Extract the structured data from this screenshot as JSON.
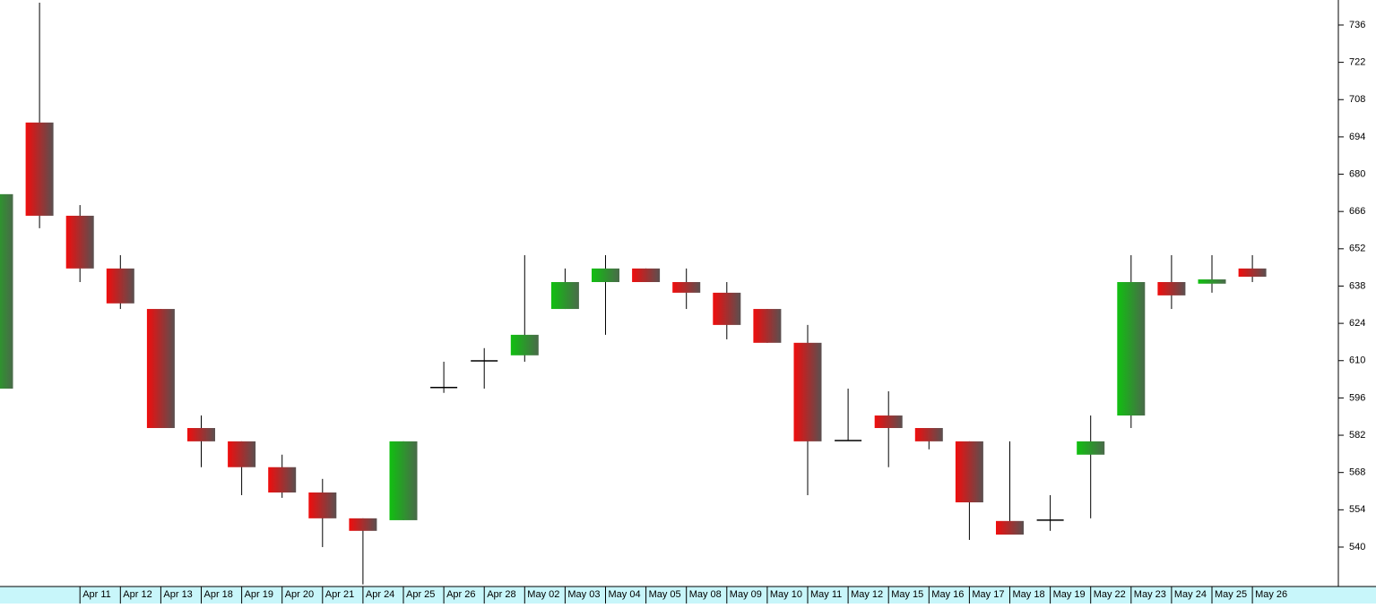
{
  "chart_data": {
    "type": "candlestick",
    "categories": [
      null,
      null,
      "Apr 11",
      "Apr 12",
      "Apr 13",
      "Apr 18",
      "Apr 19",
      "Apr 20",
      "Apr 21",
      "Apr 24",
      "Apr 25",
      "Apr 26",
      "Apr 28",
      "May 02",
      "May 03",
      "May 04",
      "May 05",
      "May 08",
      "May 09",
      "May 10",
      "May 11",
      "May 12",
      "May 15",
      "May 16",
      "May 17",
      "May 18",
      "May 19",
      "May 22",
      "May 23",
      "May 24",
      "May 25",
      "May 26"
    ],
    "open": [
      599.5,
      699.4,
      664.4,
      644.6,
      629.4,
      584.7,
      579.7,
      570.0,
      560.5,
      550.8,
      550.1,
      599.9,
      609.9,
      612.0,
      629.4,
      639.5,
      644.6,
      639.5,
      635.5,
      629.4,
      616.7,
      580.0,
      589.4,
      584.7,
      579.7,
      549.8,
      550.1,
      574.7,
      589.4,
      639.5,
      638.9,
      644.6
    ],
    "high": [
      672.5,
      744.4,
      668.4,
      649.6,
      629.4,
      589.4,
      579.7,
      574.7,
      565.6,
      550.8,
      579.7,
      609.6,
      614.7,
      649.6,
      644.6,
      649.6,
      644.6,
      644.6,
      639.5,
      629.4,
      623.4,
      599.5,
      598.5,
      584.7,
      579.7,
      579.7,
      559.5,
      589.4,
      649.6,
      649.6,
      649.6,
      649.6
    ],
    "low": [
      599.5,
      659.7,
      639.5,
      629.4,
      584.7,
      570.0,
      559.5,
      558.5,
      540.0,
      526.0,
      550.1,
      597.9,
      599.5,
      609.6,
      629.4,
      619.7,
      639.5,
      629.4,
      618.0,
      616.7,
      559.5,
      580.0,
      570.0,
      576.7,
      542.7,
      544.7,
      546.1,
      550.8,
      584.7,
      629.4,
      635.5,
      639.5
    ],
    "close": [
      672.5,
      664.4,
      644.6,
      631.5,
      584.7,
      579.7,
      570.0,
      560.5,
      550.8,
      546.1,
      579.7,
      599.9,
      609.9,
      619.7,
      639.5,
      644.6,
      639.5,
      635.5,
      623.4,
      616.7,
      579.7,
      580.0,
      584.7,
      579.7,
      556.8,
      544.7,
      550.1,
      579.7,
      639.5,
      634.5,
      640.5,
      641.5
    ],
    "up_color": "#12b312",
    "down_color": "#e31010",
    "ylim": [
      525.2,
      745.4
    ],
    "yticks": [
      540,
      554,
      568,
      582,
      596,
      610,
      624,
      638,
      652,
      666,
      680,
      694,
      708,
      722,
      736
    ]
  }
}
